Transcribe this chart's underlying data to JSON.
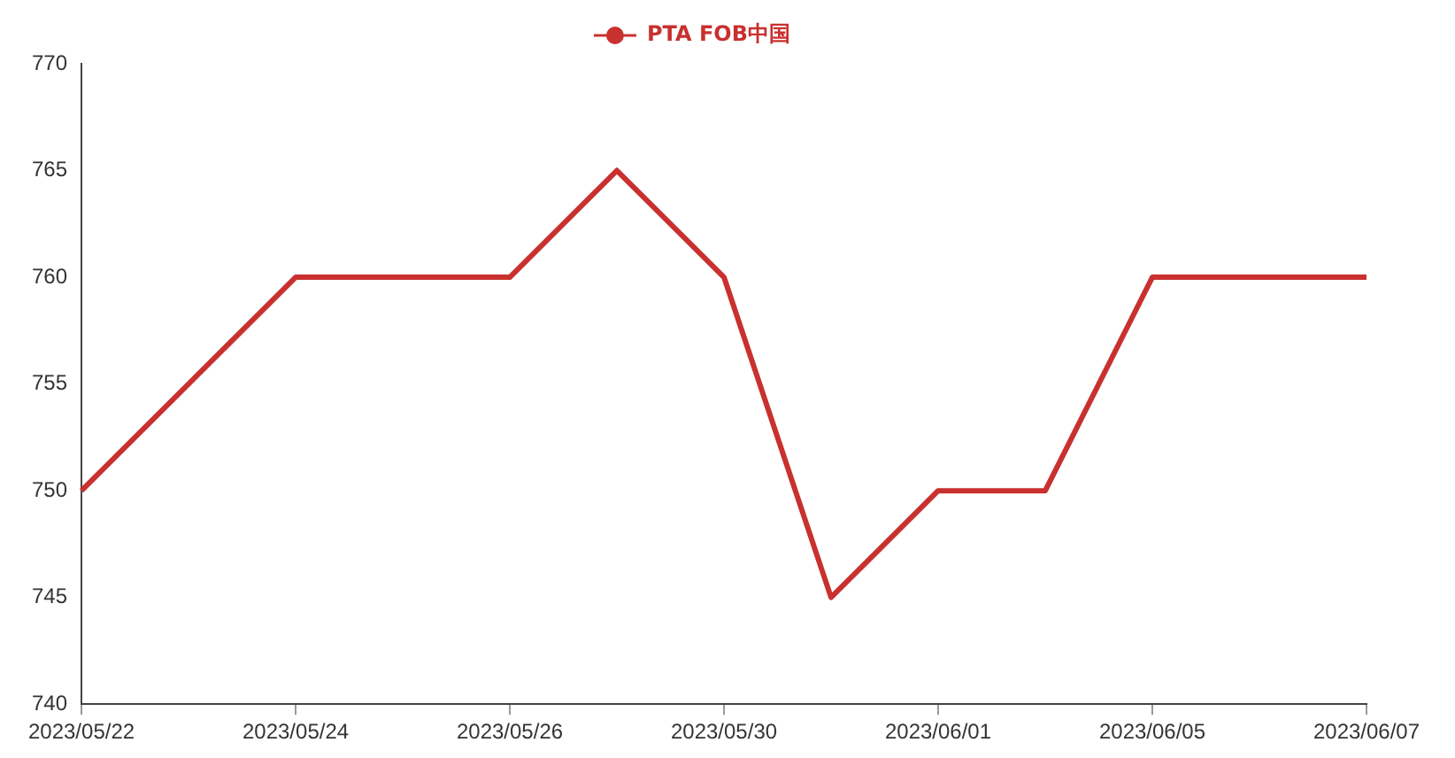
{
  "chart_data": {
    "type": "line",
    "categories": [
      "2023/05/22",
      null,
      "2023/05/24",
      null,
      "2023/05/26",
      null,
      "2023/05/30",
      null,
      "2023/06/01",
      null,
      "2023/06/05",
      null,
      "2023/06/07"
    ],
    "series": [
      {
        "name": "PTA FOB中国",
        "color": "#c8312f",
        "values": [
          750,
          755,
          760,
          760,
          760,
          765,
          760,
          745,
          750,
          750,
          760,
          760,
          760
        ]
      }
    ],
    "ylim": [
      740,
      770
    ],
    "yticks": [
      740,
      745,
      750,
      755,
      760,
      765,
      770
    ],
    "grid": false,
    "legend": "top",
    "marker": "none",
    "line_style": "solid"
  }
}
